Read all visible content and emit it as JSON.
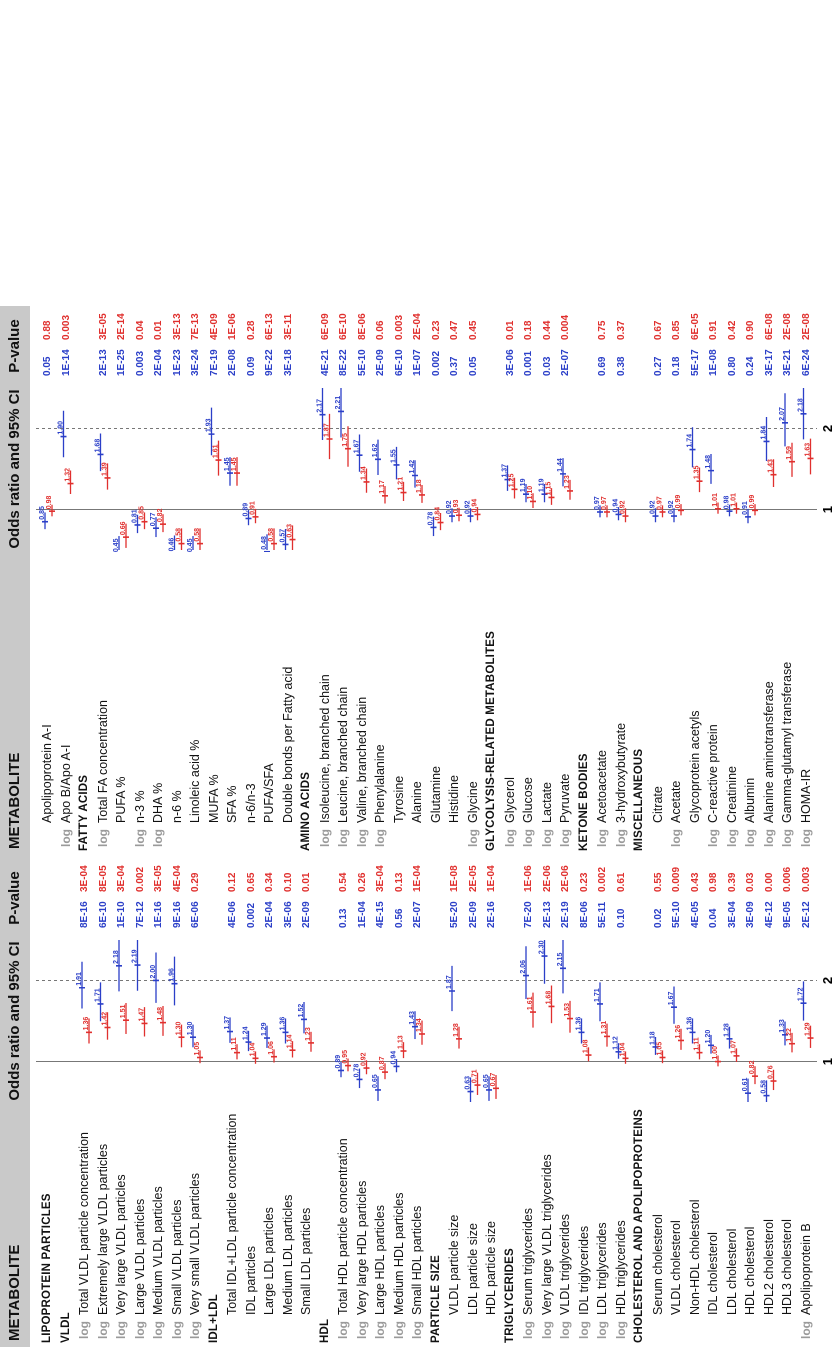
{
  "headers": {
    "metabolite": "METABOLITE",
    "odds": "Odds ratio and 95% CI",
    "pvalue": "P-value",
    "tick1": "1",
    "tick2": "2"
  },
  "log_label": "log",
  "colors": {
    "blue": "#2b3fc8",
    "red": "#e0302e",
    "header_bg": "#c9c9c9",
    "log_gray": "#9a9a9a"
  },
  "chart_data": [
    {
      "type": "forest",
      "panel": "left",
      "xlim": [
        0.6,
        2.4
      ],
      "reference_lines": [
        1,
        2
      ],
      "rows": [
        {
          "label": "LIPOPROTEIN PARTICLES",
          "section": true
        },
        {
          "label": "VLDL",
          "section": true
        },
        {
          "label": "Total VLDL particle concentration",
          "log": true,
          "blue": 1.91,
          "red": 1.36,
          "p_blue": "8E-16",
          "p_red": "3E-04"
        },
        {
          "label": "Extremely large VLDL particles",
          "log": true,
          "blue": 1.71,
          "red": 1.42,
          "p_blue": "6E-10",
          "p_red": "8E-05"
        },
        {
          "label": "Very large VLDL particles",
          "log": true,
          "blue": 2.18,
          "red": 1.51,
          "p_blue": "1E-10",
          "p_red": "3E-04"
        },
        {
          "label": "Large VLDL particles",
          "log": true,
          "blue": 2.19,
          "red": 1.47,
          "p_blue": "7E-12",
          "p_red": "0.002"
        },
        {
          "label": "Medium VLDL particles",
          "log": true,
          "blue": 2.0,
          "red": 1.48,
          "p_blue": "1E-16",
          "p_red": "3E-05"
        },
        {
          "label": "Small VLDL particles",
          "log": true,
          "blue": 1.96,
          "red": 1.3,
          "p_blue": "9E-16",
          "p_red": "4E-04"
        },
        {
          "label": "Very small VLDL particles",
          "log": true,
          "blue": 1.3,
          "red": 1.05,
          "p_blue": "6E-06",
          "p_red": "0.29"
        },
        {
          "label": "IDL+LDL",
          "section": true
        },
        {
          "label": "Total IDL+LDL particle concentration",
          "blue": 1.37,
          "red": 1.11,
          "p_blue": "4E-06",
          "p_red": "0.12"
        },
        {
          "label": "IDL particles",
          "blue": 1.24,
          "red": 1.04,
          "p_blue": "0.002",
          "p_red": "0.65"
        },
        {
          "label": "Large LDL particles",
          "blue": 1.29,
          "red": 1.06,
          "p_blue": "2E-04",
          "p_red": "0.34"
        },
        {
          "label": "Medium LDL particles",
          "blue": 1.36,
          "red": 1.14,
          "p_blue": "3E-06",
          "p_red": "0.10"
        },
        {
          "label": "Small LDL particles",
          "blue": 1.52,
          "red": 1.23,
          "p_blue": "2E-09",
          "p_red": "0.01"
        },
        {
          "label": "HDL",
          "section": true
        },
        {
          "label": "Total HDL particle concentration",
          "log": true,
          "blue": 0.89,
          "red": 0.95,
          "p_blue": "0.13",
          "p_red": "0.54"
        },
        {
          "label": "Very large HDL particles",
          "log": true,
          "blue": 0.78,
          "red": 0.92,
          "p_blue": "1E-04",
          "p_red": "0.26"
        },
        {
          "label": "Large HDL particles",
          "log": true,
          "blue": 0.65,
          "red": 0.87,
          "p_blue": "4E-15",
          "p_red": "3E-04"
        },
        {
          "label": "Medium HDL particles",
          "log": true,
          "blue": 0.94,
          "red": 1.13,
          "p_blue": "0.56",
          "p_red": "0.13"
        },
        {
          "label": "Small HDL particles",
          "log": true,
          "blue": 1.43,
          "red": 1.34,
          "p_blue": "2E-07",
          "p_red": "1E-04"
        },
        {
          "label": "PARTICLE SIZE",
          "section": true
        },
        {
          "label": "VLDL particle size",
          "blue": 1.87,
          "red": 1.28,
          "p_blue": "5E-20",
          "p_red": "1E-08"
        },
        {
          "label": "LDL particle size",
          "blue": 0.63,
          "red": 0.71,
          "p_blue": "2E-09",
          "p_red": "2E-05"
        },
        {
          "label": "HDL particle size",
          "blue": 0.65,
          "red": 0.67,
          "p_blue": "2E-16",
          "p_red": "1E-04"
        },
        {
          "label": "TRIGLYCERIDES",
          "section": true
        },
        {
          "label": "Serum triglycerides",
          "log": true,
          "blue": 2.06,
          "red": 1.61,
          "p_blue": "7E-20",
          "p_red": "1E-06"
        },
        {
          "label": "Very large VLDL triglycerides",
          "log": true,
          "blue": 2.3,
          "red": 1.68,
          "p_blue": "2E-13",
          "p_red": "2E-06"
        },
        {
          "label": "VLDL triglycerides",
          "log": true,
          "blue": 2.15,
          "red": 1.53,
          "p_blue": "2E-19",
          "p_red": "2E-06"
        },
        {
          "label": "IDL triglycerides",
          "log": true,
          "blue": 1.36,
          "red": 1.08,
          "p_blue": "8E-06",
          "p_red": "0.23"
        },
        {
          "label": "LDL triglycerides",
          "log": true,
          "blue": 1.71,
          "red": 1.31,
          "p_blue": "5E-11",
          "p_red": "0.002"
        },
        {
          "label": "HDL triglycerides",
          "log": true,
          "blue": 1.12,
          "red": 1.04,
          "p_blue": "0.10",
          "p_red": "0.61"
        },
        {
          "label": "CHOLESTEROL AND APOLIPOPROTEINS",
          "section": true
        },
        {
          "label": "Serum cholesterol",
          "blue": 1.18,
          "red": 1.05,
          "p_blue": "0.02",
          "p_red": "0.55"
        },
        {
          "label": "VLDL cholesterol",
          "blue": 1.67,
          "red": 1.26,
          "p_blue": "5E-10",
          "p_red": "0.009"
        },
        {
          "label": "Non-HDL cholesterol",
          "blue": 1.36,
          "red": 1.11,
          "p_blue": "4E-05",
          "p_red": "0.43"
        },
        {
          "label": "IDL cholesterol",
          "blue": 1.2,
          "red": 1.0,
          "p_blue": "0.04",
          "p_red": "0.98"
        },
        {
          "label": "LDL cholesterol",
          "blue": 1.28,
          "red": 1.07,
          "p_blue": "3E-04",
          "p_red": "0.39"
        },
        {
          "label": "HDL cholesterol",
          "blue": 0.61,
          "red": 0.82,
          "p_blue": "3E-09",
          "p_red": "0.03"
        },
        {
          "label": "HDL2 cholesterol",
          "blue": 0.58,
          "red": 0.76,
          "p_blue": "4E-12",
          "p_red": "0.00"
        },
        {
          "label": "HDL3 cholesterol",
          "blue": 1.33,
          "red": 1.22,
          "p_blue": "9E-05",
          "p_red": "0.006"
        },
        {
          "label": "Apolipoprotein B",
          "log": true,
          "blue": 1.72,
          "red": 1.29,
          "p_blue": "2E-12",
          "p_red": "0.003"
        }
      ]
    },
    {
      "type": "forest",
      "panel": "right",
      "xlim": [
        0.6,
        2.4
      ],
      "reference_lines": [
        1,
        2
      ],
      "rows": [
        {
          "label": "Apolipoprotein A-I",
          "blue": 0.85,
          "red": 0.98,
          "p_blue": "0.05",
          "p_red": "0.88"
        },
        {
          "label": "Apo B/Apo A-I",
          "log": true,
          "blue": 1.9,
          "red": 1.32,
          "p_blue": "1E-14",
          "p_red": "0.003"
        },
        {
          "label": "FATTY ACIDS",
          "section": true
        },
        {
          "label": "Total FA concentration",
          "log": true,
          "blue": 1.68,
          "red": 1.39,
          "p_blue": "2E-13",
          "p_red": "3E-05"
        },
        {
          "label": "PUFA %",
          "blue": 0.45,
          "red": 0.66,
          "p_blue": "1E-25",
          "p_red": "2E-14"
        },
        {
          "label": "n-3 %",
          "log": true,
          "blue": 0.81,
          "red": 0.85,
          "p_blue": "0.003",
          "p_red": "0.04"
        },
        {
          "label": "DHA %",
          "log": true,
          "blue": 0.77,
          "red": 0.82,
          "p_blue": "2E-04",
          "p_red": "0.01"
        },
        {
          "label": "n-6 %",
          "blue": 0.46,
          "red": 0.58,
          "p_blue": "1E-23",
          "p_red": "3E-13"
        },
        {
          "label": "Linoleic acid %",
          "blue": 0.45,
          "red": 0.58,
          "p_blue": "3E-24",
          "p_red": "7E-13"
        },
        {
          "label": "MUFA %",
          "blue": 1.93,
          "red": 1.61,
          "p_blue": "7E-19",
          "p_red": "4E-09"
        },
        {
          "label": "SFA %",
          "blue": 1.45,
          "red": 1.45,
          "p_blue": "2E-08",
          "p_red": "1E-06"
        },
        {
          "label": "n-6/n-3",
          "blue": 0.89,
          "red": 0.91,
          "p_blue": "0.09",
          "p_red": "0.28"
        },
        {
          "label": "PUFA/SFA",
          "blue": 0.48,
          "red": 0.58,
          "p_blue": "9E-22",
          "p_red": "6E-13"
        },
        {
          "label": "Double bonds per Fatty acid",
          "blue": 0.57,
          "red": 0.63,
          "p_blue": "3E-18",
          "p_red": "3E-11"
        },
        {
          "label": "AMINO ACIDS",
          "section": true
        },
        {
          "label": "Isoleucine, branched chain",
          "log": true,
          "blue": 2.17,
          "red": 1.87,
          "p_blue": "4E-21",
          "p_red": "6E-09"
        },
        {
          "label": "Leucine, branched chain",
          "log": true,
          "blue": 2.21,
          "red": 1.75,
          "p_blue": "8E-22",
          "p_red": "6E-10"
        },
        {
          "label": "Valine, branched chain",
          "log": true,
          "blue": 1.67,
          "red": 1.34,
          "p_blue": "5E-10",
          "p_red": "8E-06"
        },
        {
          "label": "Phenylalanine",
          "log": true,
          "blue": 1.62,
          "red": 1.17,
          "p_blue": "2E-09",
          "p_red": "0.06"
        },
        {
          "label": "Tyrosine",
          "blue": 1.55,
          "red": 1.21,
          "p_blue": "6E-10",
          "p_red": "0.003"
        },
        {
          "label": "Alanine",
          "blue": 1.42,
          "red": 1.18,
          "p_blue": "1E-07",
          "p_red": "2E-04"
        },
        {
          "label": "Glutamine",
          "blue": 0.78,
          "red": 0.84,
          "p_blue": "0.002",
          "p_red": "0.23"
        },
        {
          "label": "Histidine",
          "blue": 0.92,
          "red": 0.93,
          "p_blue": "0.37",
          "p_red": "0.47"
        },
        {
          "label": "Glycine",
          "log": true,
          "blue": 0.92,
          "red": 0.94,
          "p_blue": "0.05",
          "p_red": "0.45"
        },
        {
          "label": "GLYCOLYSIS-RELATED METABOLITES",
          "section": true
        },
        {
          "label": "Glycerol",
          "log": true,
          "blue": 1.37,
          "red": 1.25,
          "p_blue": "3E-06",
          "p_red": "0.01"
        },
        {
          "label": "Glucose",
          "log": true,
          "blue": 1.19,
          "red": 1.1,
          "p_blue": "0.001",
          "p_red": "0.18"
        },
        {
          "label": "Lactate",
          "log": true,
          "blue": 1.19,
          "red": 1.15,
          "p_blue": "0.03",
          "p_red": "0.44"
        },
        {
          "label": "Pyruvate",
          "log": true,
          "blue": 1.44,
          "red": 1.23,
          "p_blue": "2E-07",
          "p_red": "0.004"
        },
        {
          "label": "KETONE BODIES",
          "section": true
        },
        {
          "label": "Acetoacetate",
          "log": true,
          "blue": 0.97,
          "red": 0.97,
          "p_blue": "0.69",
          "p_red": "0.75"
        },
        {
          "label": "3-hydroxybutyrate",
          "log": true,
          "blue": 0.94,
          "red": 0.92,
          "p_blue": "0.38",
          "p_red": "0.37"
        },
        {
          "label": "MISCELLANEOUS",
          "section": true
        },
        {
          "label": "Citrate",
          "blue": 0.92,
          "red": 0.97,
          "p_blue": "0.27",
          "p_red": "0.67"
        },
        {
          "label": "Acetate",
          "log": true,
          "blue": 0.92,
          "red": 0.99,
          "p_blue": "0.18",
          "p_red": "0.85"
        },
        {
          "label": "Glycoprotein acetyls",
          "blue": 1.74,
          "red": 1.35,
          "p_blue": "5E-17",
          "p_red": "6E-05"
        },
        {
          "label": "C-reactive protein",
          "log": true,
          "blue": 1.48,
          "red": 1.01,
          "p_blue": "1E-08",
          "p_red": "0.91"
        },
        {
          "label": "Creatinine",
          "log": true,
          "blue": 0.98,
          "red": 1.01,
          "p_blue": "0.80",
          "p_red": "0.42"
        },
        {
          "label": "Albumin",
          "log": true,
          "blue": 0.91,
          "red": 0.99,
          "p_blue": "0.24",
          "p_red": "0.90"
        },
        {
          "label": "Alanine aminotransferase",
          "log": true,
          "blue": 1.84,
          "red": 1.43,
          "p_blue": "3E-17",
          "p_red": "6E-08"
        },
        {
          "label": "Gamma-glutamyl transferase",
          "log": true,
          "blue": 2.07,
          "red": 1.59,
          "p_blue": "3E-21",
          "p_red": "2E-08"
        },
        {
          "label": "HOMA-IR",
          "log": true,
          "blue": 2.18,
          "red": 1.63,
          "p_blue": "6E-24",
          "p_red": "2E-08"
        }
      ]
    }
  ]
}
